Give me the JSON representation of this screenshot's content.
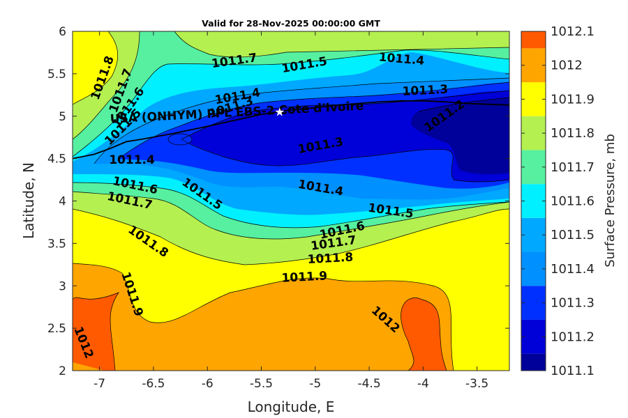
{
  "chart_data": {
    "type": "contour",
    "title": "Valid for 28-Nov-2025 00:00:00 GMT",
    "xlabel": "Longitude, E",
    "ylabel": "Latitude, N",
    "xlim": [
      -7.25,
      -3.2
    ],
    "ylim": [
      2,
      6
    ],
    "xticks": [
      -7,
      -6.5,
      -6,
      -5.5,
      -5,
      -4.5,
      -4,
      -3.5
    ],
    "xtick_labels": [
      "-7",
      "-6.5",
      "-6",
      "-5.5",
      "-5",
      "-4.5",
      "-4",
      "-3.5"
    ],
    "yticks": [
      2,
      2.5,
      3,
      3.5,
      4,
      4.5,
      5,
      5.5,
      6
    ],
    "ytick_labels": [
      "2",
      "2.5",
      "3",
      "3.5",
      "4",
      "4.5",
      "5",
      "5.5",
      "6"
    ],
    "colorbar": {
      "label": "Surface Pressure, mb",
      "levels": [
        1011.1,
        1011.2,
        1011.3,
        1011.4,
        1011.5,
        1011.6,
        1011.7,
        1011.8,
        1011.9,
        1012,
        1012.1
      ],
      "tick_labels": [
        "1011.1",
        "1011.2",
        "1011.3",
        "1011.4",
        "1011.5",
        "1011.6",
        "1011.7",
        "1011.8",
        "1011.9",
        "1012",
        "1012.1"
      ],
      "colors": [
        "#00009a",
        "#0000d8",
        "#0030ff",
        "#0090ff",
        "#00a8ff",
        "#00f0ff",
        "#56f0a0",
        "#b4f050",
        "#ffff00",
        "#ffa500",
        "#ff5a00",
        "#ff0000"
      ]
    },
    "contour_labels": [
      {
        "text": "1011.8",
        "lon": -6.97,
        "lat": 5.45,
        "angle": -70
      },
      {
        "text": "1011.7",
        "lon": -6.8,
        "lat": 5.3,
        "angle": -70
      },
      {
        "text": "1011.6",
        "lon": -6.73,
        "lat": 5.1,
        "angle": -55
      },
      {
        "text": "1011.5",
        "lon": -6.78,
        "lat": 4.87,
        "angle": -45
      },
      {
        "text": "1011.7",
        "lon": -5.75,
        "lat": 5.65,
        "angle": -8
      },
      {
        "text": "1011.5",
        "lon": -5.1,
        "lat": 5.6,
        "angle": -10
      },
      {
        "text": "1011.4",
        "lon": -4.2,
        "lat": 5.67,
        "angle": 5
      },
      {
        "text": "1011.4",
        "lon": -5.72,
        "lat": 5.23,
        "angle": -10
      },
      {
        "text": "1011.3",
        "lon": -5.78,
        "lat": 5.1,
        "angle": -18
      },
      {
        "text": "1011.3",
        "lon": -3.98,
        "lat": 5.3,
        "angle": -3
      },
      {
        "text": "1011.2",
        "lon": -3.8,
        "lat": 5.0,
        "angle": -35
      },
      {
        "text": "1011.3",
        "lon": -4.95,
        "lat": 4.65,
        "angle": -10
      },
      {
        "text": "1011.4",
        "lon": -6.7,
        "lat": 4.48,
        "angle": 0
      },
      {
        "text": "1011.4",
        "lon": -4.95,
        "lat": 4.15,
        "angle": 10
      },
      {
        "text": "1011.6",
        "lon": -6.67,
        "lat": 4.18,
        "angle": 12
      },
      {
        "text": "1011.5",
        "lon": -6.05,
        "lat": 4.08,
        "angle": 35
      },
      {
        "text": "1011.7",
        "lon": -6.72,
        "lat": 4.0,
        "angle": 12
      },
      {
        "text": "1011.5",
        "lon": -4.3,
        "lat": 3.88,
        "angle": 8
      },
      {
        "text": "1011.6",
        "lon": -4.75,
        "lat": 3.65,
        "angle": -12
      },
      {
        "text": "1011.7",
        "lon": -4.83,
        "lat": 3.5,
        "angle": -8
      },
      {
        "text": "1011.8",
        "lon": -6.55,
        "lat": 3.52,
        "angle": 35
      },
      {
        "text": "1011.8",
        "lon": -4.86,
        "lat": 3.32,
        "angle": -3
      },
      {
        "text": "1011.9",
        "lon": -5.1,
        "lat": 3.1,
        "angle": -3
      },
      {
        "text": "1011.9",
        "lon": -6.7,
        "lat": 2.9,
        "angle": 72
      },
      {
        "text": "1012",
        "lon": -4.35,
        "lat": 2.6,
        "angle": 42
      },
      {
        "text": "1012",
        "lon": -7.15,
        "lat": 2.33,
        "angle": 68
      }
    ],
    "annotation": {
      "text": "USA (ONHYM) PPL EBS-2 Cote d'Ivoire",
      "lon": -6.9,
      "lat": 4.92
    },
    "marker": {
      "type": "star",
      "lon": -5.33,
      "lat": 5.05,
      "color": "#ffffff"
    },
    "boundary_line": {
      "lon": [
        -7.25,
        -7.05,
        -6.9,
        -6.75,
        -6.6,
        -6.3,
        -6.0,
        -5.75,
        -5.5,
        -5.25,
        -5.0,
        -4.8,
        -4.6,
        -4.4,
        -4.2,
        -4.0,
        -3.8,
        -3.6,
        -3.4,
        -3.2
      ],
      "lat": [
        4.5,
        4.55,
        4.62,
        4.7,
        4.73,
        4.8,
        4.88,
        4.95,
        5.02,
        5.07,
        5.1,
        5.13,
        5.15,
        5.17,
        5.18,
        5.18,
        5.17,
        5.15,
        5.14,
        5.13
      ]
    },
    "grid": false
  }
}
